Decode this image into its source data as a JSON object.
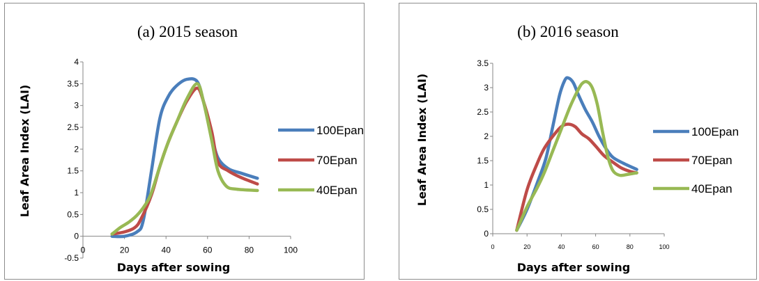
{
  "chart_data": [
    {
      "type": "line",
      "title": "(a) 2015  season",
      "xlabel": "Days after sowing",
      "ylabel": "Leaf  Area Index (LAI)",
      "xlim": [
        0,
        100
      ],
      "ylim": [
        -0.5,
        4
      ],
      "x_ticks": [
        "0",
        "20",
        "40",
        "60",
        "80",
        "100"
      ],
      "y_ticks": [
        "-0.5",
        "0",
        "0.5",
        "1",
        "1.5",
        "2",
        "2.5",
        "3",
        "3.5",
        "4"
      ],
      "grid": false,
      "legend_position": "right",
      "series": [
        {
          "name": "100Epan",
          "color": "#4a7ebb",
          "x": [
            14,
            20,
            26,
            29,
            33,
            37,
            41,
            45,
            50,
            55,
            58,
            62,
            65,
            70,
            76,
            84
          ],
          "y": [
            0.0,
            0.0,
            0.1,
            0.35,
            1.5,
            2.7,
            3.2,
            3.45,
            3.6,
            3.55,
            3.1,
            2.3,
            1.8,
            1.55,
            1.45,
            1.33
          ]
        },
        {
          "name": "70Epan",
          "color": "#be4b48",
          "x": [
            14,
            20,
            25,
            28,
            33,
            37,
            41,
            45,
            50,
            55,
            58,
            62,
            65,
            70,
            76,
            84
          ],
          "y": [
            0.05,
            0.1,
            0.2,
            0.4,
            0.95,
            1.6,
            2.15,
            2.6,
            3.1,
            3.4,
            3.1,
            2.4,
            1.7,
            1.5,
            1.35,
            1.2
          ]
        },
        {
          "name": "40Epan",
          "color": "#98b954",
          "x": [
            14,
            18,
            22,
            26,
            30,
            33,
            37,
            41,
            45,
            50,
            55,
            58,
            62,
            65,
            69,
            74,
            84
          ],
          "y": [
            0.05,
            0.2,
            0.32,
            0.48,
            0.72,
            1.0,
            1.6,
            2.15,
            2.6,
            3.15,
            3.5,
            3.1,
            2.2,
            1.5,
            1.15,
            1.08,
            1.05
          ]
        }
      ]
    },
    {
      "type": "line",
      "title": "(b) 2016 season",
      "xlabel": "Days after sowing",
      "ylabel": "Leaf Area Index (LAI)",
      "xlim": [
        0,
        100
      ],
      "ylim": [
        0,
        3.5
      ],
      "x_ticks": [
        "0",
        "20",
        "40",
        "60",
        "80",
        "100"
      ],
      "y_ticks": [
        "0",
        "0.5",
        "1",
        "1.5",
        "2",
        "2.5",
        "3",
        "3.5"
      ],
      "grid": false,
      "legend_position": "right",
      "series": [
        {
          "name": "100Epan",
          "color": "#4a7ebb",
          "x": [
            14,
            20,
            26,
            31,
            35,
            39,
            42,
            44,
            47,
            50,
            54,
            58,
            62,
            66,
            70,
            76,
            84
          ],
          "y": [
            0.07,
            0.5,
            1.05,
            1.55,
            2.2,
            2.85,
            3.15,
            3.2,
            3.1,
            2.85,
            2.55,
            2.3,
            2.0,
            1.75,
            1.57,
            1.45,
            1.32
          ]
        },
        {
          "name": "70Epan",
          "color": "#be4b48",
          "x": [
            14,
            20,
            26,
            30,
            35,
            40,
            44,
            48,
            52,
            56,
            60,
            65,
            70,
            75,
            80,
            84
          ],
          "y": [
            0.07,
            0.9,
            1.45,
            1.75,
            2.0,
            2.2,
            2.25,
            2.2,
            2.05,
            1.95,
            1.8,
            1.6,
            1.47,
            1.35,
            1.28,
            1.25
          ]
        },
        {
          "name": "40Epan",
          "color": "#98b954",
          "x": [
            14,
            20,
            26,
            30,
            35,
            40,
            45,
            49,
            52,
            55,
            58,
            61,
            64,
            67,
            70,
            74,
            79,
            84
          ],
          "y": [
            0.07,
            0.55,
            0.95,
            1.25,
            1.7,
            2.15,
            2.6,
            2.9,
            3.08,
            3.12,
            3.0,
            2.65,
            2.1,
            1.6,
            1.3,
            1.2,
            1.22,
            1.25
          ]
        }
      ]
    }
  ]
}
